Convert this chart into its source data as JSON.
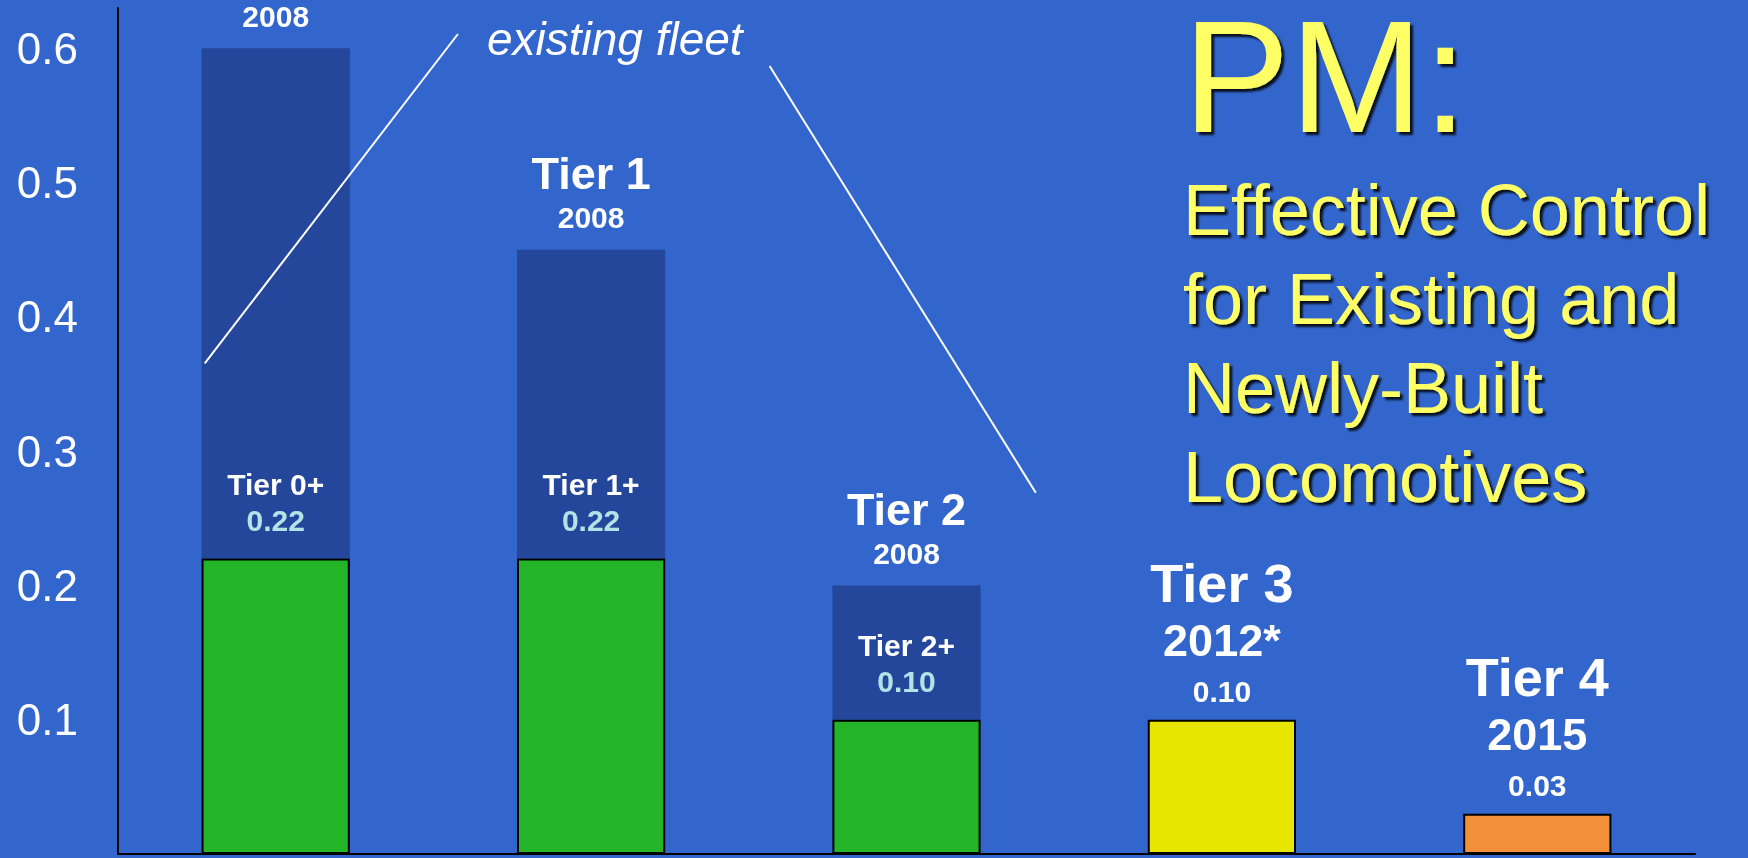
{
  "chart_data": {
    "type": "bar",
    "title": "PM:",
    "subtitle": "Effective Control for Existing and Newly-Built Locomotives",
    "annotations": [
      "existing fleet",
      {
        "text": "2008",
        "y": 0.6
      },
      {
        "text": "Tier 1\n2008",
        "y": 0.45
      },
      {
        "text": "Tier 2\n2008",
        "y": 0.2
      },
      {
        "text": "Tier 3\n2012*",
        "y": 0.1
      },
      {
        "text": "Tier 4\n2015",
        "y": 0.03
      }
    ],
    "categories": [
      null,
      null,
      null,
      null,
      null
    ],
    "stacked": true,
    "series": [
      {
        "values": [
          0.22,
          0.22,
          0.1,
          0.1,
          0.03
        ],
        "colors": [
          "#24b428",
          "#24b428",
          "#24b428",
          "#e6e600",
          "#f2903a"
        ],
        "value_labels": [
          "Tier 0+\n0.22",
          "Tier 1+\n0.22",
          "Tier 2+\n0.10",
          "0.10",
          "0.03"
        ]
      },
      {
        "values": [
          0.38,
          0.23,
          0.1,
          null,
          null
        ],
        "color": "#24479c"
      }
    ],
    "ylim": [
      0,
      0.63
    ],
    "yticks": [
      0.1,
      0.2,
      0.3,
      0.4,
      0.5,
      0.6
    ],
    "grid": false,
    "tick_labels": "y"
  }
}
